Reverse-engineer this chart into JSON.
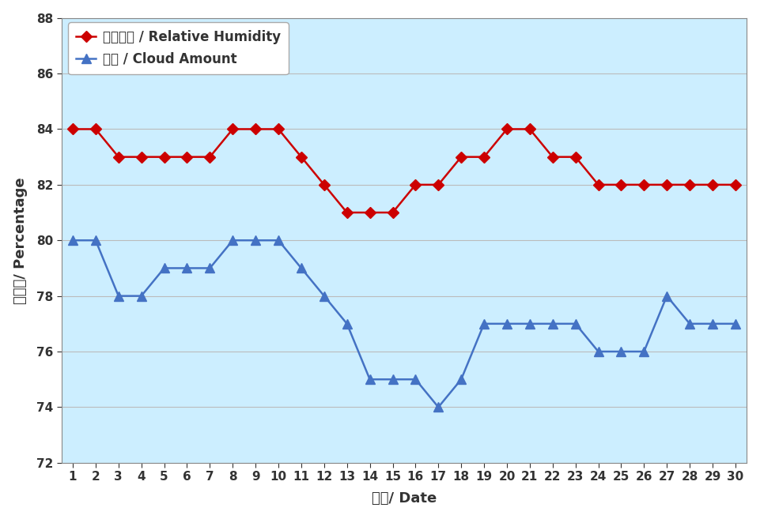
{
  "days": [
    1,
    2,
    3,
    4,
    5,
    6,
    7,
    8,
    9,
    10,
    11,
    12,
    13,
    14,
    15,
    16,
    17,
    18,
    19,
    20,
    21,
    22,
    23,
    24,
    25,
    26,
    27,
    28,
    29,
    30
  ],
  "humidity": [
    84,
    84,
    83,
    83,
    83,
    83,
    83,
    84,
    84,
    84,
    83,
    82,
    81,
    81,
    81,
    82,
    82,
    83,
    83,
    84,
    84,
    83,
    83,
    82,
    82,
    82,
    82,
    82,
    82,
    82
  ],
  "cloud": [
    80,
    80,
    78,
    78,
    79,
    79,
    79,
    80,
    80,
    80,
    79,
    78,
    77,
    75,
    75,
    75,
    74,
    75,
    77,
    77,
    77,
    77,
    77,
    76,
    76,
    76,
    78,
    77,
    77,
    77
  ],
  "humidity_color": "#CC0000",
  "cloud_color": "#4472C4",
  "bg_color": "#CCEEFF",
  "fig_bg_color": "#FFFFFF",
  "xlabel": "日期/ Date",
  "ylabel": "百分比/ Percentage",
  "ylim": [
    72,
    88
  ],
  "yticks": [
    72,
    74,
    76,
    78,
    80,
    82,
    84,
    86,
    88
  ],
  "legend_humidity": "相對濕度 / Relative Humidity",
  "legend_cloud": "雲量 / Cloud Amount",
  "grid_color": "#BBBBBB",
  "tick_fontsize": 11,
  "label_fontsize": 13
}
